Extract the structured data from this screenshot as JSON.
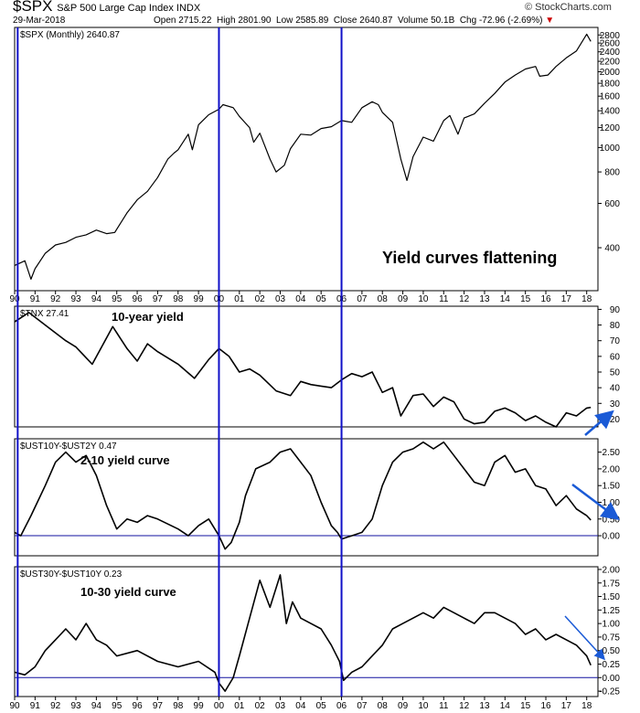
{
  "header": {
    "symbol": "$SPX",
    "name": "S&P 500 Large Cap Index INDX",
    "date": "29-Mar-2018",
    "open_label": "Open",
    "open": "2715.22",
    "high_label": "High",
    "high": "2801.90",
    "low_label": "Low",
    "low": "2585.89",
    "close_label": "Close",
    "close": "2640.87",
    "volume_label": "Volume",
    "volume": "50.1B",
    "chg_label": "Chg",
    "chg": "-72.96 (-2.69%)",
    "chg_glyph": "▼",
    "watermark": "© StockCharts.com"
  },
  "colors": {
    "annotation_blue": "#1010c8",
    "price_line": "#000000",
    "arrow_blue": "#1a5ad6",
    "chg_red": "#cc0000"
  },
  "chart_data": [
    {
      "type": "line",
      "panel": "price",
      "panel_label": "$SPX (Monthly) 2640.87",
      "annotation": "Yield curves flattening",
      "y_scale": "log",
      "ylim": [
        270,
        3000
      ],
      "y_ticks": [
        400,
        600,
        800,
        1000,
        1200,
        1400,
        1600,
        1800,
        2000,
        2200,
        2400,
        2600,
        2800
      ],
      "x": [
        1990.0,
        1990.5,
        1990.8,
        1991.0,
        1991.5,
        1992.0,
        1992.5,
        1993.0,
        1993.5,
        1994.0,
        1994.5,
        1994.9,
        1995.5,
        1996.0,
        1996.5,
        1997.0,
        1997.5,
        1997.8,
        1998.0,
        1998.5,
        1998.7,
        1999.0,
        1999.5,
        2000.0,
        2000.2,
        2000.7,
        2001.0,
        2001.5,
        2001.7,
        2002.0,
        2002.5,
        2002.8,
        2003.2,
        2003.5,
        2004.0,
        2004.5,
        2005.0,
        2005.5,
        2006.0,
        2006.5,
        2007.0,
        2007.5,
        2007.8,
        2008.0,
        2008.5,
        2008.9,
        2009.2,
        2009.5,
        2010.0,
        2010.5,
        2011.0,
        2011.3,
        2011.7,
        2012.0,
        2012.5,
        2013.0,
        2013.5,
        2014.0,
        2014.5,
        2015.0,
        2015.5,
        2015.7,
        2016.1,
        2016.5,
        2017.0,
        2017.5,
        2018.0,
        2018.2
      ],
      "values": [
        340,
        355,
        300,
        330,
        380,
        410,
        420,
        440,
        450,
        470,
        455,
        460,
        550,
        620,
        670,
        760,
        900,
        950,
        980,
        1130,
        980,
        1230,
        1350,
        1420,
        1480,
        1440,
        1330,
        1200,
        1050,
        1140,
        900,
        800,
        850,
        990,
        1130,
        1120,
        1190,
        1210,
        1280,
        1260,
        1440,
        1520,
        1480,
        1380,
        1260,
        900,
        740,
        920,
        1100,
        1060,
        1280,
        1340,
        1130,
        1310,
        1360,
        1500,
        1640,
        1820,
        1940,
        2050,
        2100,
        1920,
        1940,
        2100,
        2270,
        2420,
        2820,
        2640
      ]
    },
    {
      "type": "line",
      "panel": "tnx",
      "panel_label": "$TNX 27.41",
      "annotation": "10-year yield",
      "ylim": [
        15,
        92
      ],
      "y_ticks": [
        20,
        30,
        40,
        50,
        60,
        70,
        80,
        90
      ],
      "x": [
        1990.0,
        1990.7,
        1991.5,
        1992.5,
        1993.0,
        1993.8,
        1994.8,
        1995.5,
        1996.0,
        1996.5,
        1997.0,
        1998.0,
        1998.8,
        1999.5,
        2000.0,
        2000.5,
        2001.0,
        2001.5,
        2002.0,
        2002.8,
        2003.5,
        2004.0,
        2004.5,
        2005.0,
        2005.5,
        2006.0,
        2006.5,
        2007.0,
        2007.5,
        2008.0,
        2008.5,
        2008.9,
        2009.5,
        2010.0,
        2010.5,
        2011.0,
        2011.5,
        2012.0,
        2012.5,
        2013.0,
        2013.5,
        2014.0,
        2014.5,
        2015.0,
        2015.5,
        2016.0,
        2016.5,
        2017.0,
        2017.5,
        2018.0,
        2018.2
      ],
      "values": [
        82,
        88,
        80,
        70,
        66,
        55,
        79,
        65,
        57,
        68,
        63,
        55,
        46,
        58,
        65,
        60,
        50,
        52,
        48,
        38,
        35,
        44,
        42,
        41,
        40,
        45,
        49,
        47,
        50,
        37,
        40,
        22,
        35,
        36,
        28,
        34,
        31,
        20,
        17,
        18,
        25,
        27,
        24,
        19,
        22,
        18,
        15,
        24,
        22,
        27,
        27.41
      ]
    },
    {
      "type": "line",
      "panel": "t10y2y",
      "panel_label": "$UST10Y-$UST2Y 0.47",
      "annotation": "2-10 yield curve",
      "ylim": [
        -0.6,
        2.9
      ],
      "y_ticks": [
        0.0,
        0.5,
        1.0,
        1.5,
        2.0,
        2.5
      ],
      "x": [
        1990.0,
        1990.3,
        1990.8,
        1991.5,
        1992.0,
        1992.5,
        1993.0,
        1993.5,
        1994.0,
        1994.5,
        1995.0,
        1995.5,
        1996.0,
        1996.5,
        1997.0,
        1998.0,
        1998.5,
        1999.0,
        1999.5,
        2000.0,
        2000.3,
        2000.6,
        2001.0,
        2001.3,
        2001.8,
        2002.5,
        2003.0,
        2003.5,
        2004.0,
        2004.5,
        2005.0,
        2005.5,
        2005.8,
        2006.0,
        2006.5,
        2007.0,
        2007.5,
        2008.0,
        2008.5,
        2009.0,
        2009.5,
        2010.0,
        2010.5,
        2011.0,
        2011.5,
        2012.0,
        2012.5,
        2013.0,
        2013.5,
        2014.0,
        2014.5,
        2015.0,
        2015.5,
        2016.0,
        2016.5,
        2017.0,
        2017.5,
        2018.0,
        2018.2
      ],
      "values": [
        0.1,
        0.0,
        0.6,
        1.5,
        2.2,
        2.5,
        2.2,
        2.4,
        1.8,
        0.9,
        0.2,
        0.5,
        0.4,
        0.6,
        0.5,
        0.2,
        0.0,
        0.3,
        0.5,
        0.0,
        -0.4,
        -0.2,
        0.4,
        1.2,
        2.0,
        2.2,
        2.5,
        2.6,
        2.2,
        1.8,
        1.0,
        0.3,
        0.1,
        -0.1,
        0.0,
        0.1,
        0.5,
        1.5,
        2.2,
        2.5,
        2.6,
        2.8,
        2.6,
        2.8,
        2.4,
        2.0,
        1.6,
        1.5,
        2.2,
        2.4,
        1.9,
        2.0,
        1.5,
        1.4,
        0.9,
        1.2,
        0.8,
        0.6,
        0.47
      ]
    },
    {
      "type": "line",
      "panel": "t30y10y",
      "panel_label": "$UST30Y-$UST10Y 0.23",
      "annotation": "10-30 yield curve",
      "ylim": [
        -0.35,
        2.05
      ],
      "y_ticks": [
        -0.25,
        0.0,
        0.25,
        0.5,
        0.75,
        1.0,
        1.25,
        1.5,
        1.75,
        2.0
      ],
      "x": [
        1990.0,
        1990.5,
        1991.0,
        1991.5,
        1992.0,
        1992.5,
        1993.0,
        1993.5,
        1994.0,
        1994.5,
        1995.0,
        1996.0,
        1997.0,
        1998.0,
        1999.0,
        1999.8,
        2000.0,
        2000.3,
        2000.7,
        2001.0,
        2001.5,
        2002.0,
        2002.5,
        2003.0,
        2003.3,
        2003.6,
        2004.0,
        2004.5,
        2005.0,
        2005.5,
        2005.9,
        2006.1,
        2006.5,
        2007.0,
        2007.5,
        2008.0,
        2008.5,
        2009.0,
        2009.5,
        2010.0,
        2010.5,
        2011.0,
        2011.5,
        2012.0,
        2012.5,
        2013.0,
        2013.5,
        2014.0,
        2014.5,
        2015.0,
        2015.5,
        2016.0,
        2016.5,
        2017.0,
        2017.5,
        2018.0,
        2018.2
      ],
      "values": [
        0.1,
        0.05,
        0.2,
        0.5,
        0.7,
        0.9,
        0.7,
        1.0,
        0.7,
        0.6,
        0.4,
        0.5,
        0.3,
        0.2,
        0.3,
        0.1,
        -0.1,
        -0.25,
        0.0,
        0.4,
        1.1,
        1.8,
        1.3,
        1.9,
        1.0,
        1.4,
        1.1,
        1.0,
        0.9,
        0.6,
        0.3,
        -0.05,
        0.1,
        0.2,
        0.4,
        0.6,
        0.9,
        1.0,
        1.1,
        1.2,
        1.1,
        1.3,
        1.2,
        1.1,
        1.0,
        1.2,
        1.2,
        1.1,
        1.0,
        0.8,
        0.9,
        0.7,
        0.8,
        0.7,
        0.6,
        0.4,
        0.23
      ]
    }
  ],
  "x_axis": {
    "year_ticks": [
      1990,
      1991,
      1992,
      1993,
      1994,
      1995,
      1996,
      1997,
      1998,
      1999,
      2000,
      2001,
      2002,
      2003,
      2004,
      2005,
      2006,
      2007,
      2008,
      2009,
      2010,
      2011,
      2012,
      2013,
      2014,
      2015,
      2016,
      2017,
      2018
    ],
    "year_labels": [
      "90",
      "91",
      "92",
      "93",
      "94",
      "95",
      "96",
      "97",
      "98",
      "99",
      "00",
      "01",
      "02",
      "03",
      "04",
      "05",
      "06",
      "07",
      "08",
      "09",
      "10",
      "11",
      "12",
      "13",
      "14",
      "15",
      "16",
      "17",
      "18"
    ],
    "xlim": [
      1990.0,
      2018.55
    ]
  },
  "marker_years": [
    1990.15,
    2000.0,
    2006.0
  ]
}
